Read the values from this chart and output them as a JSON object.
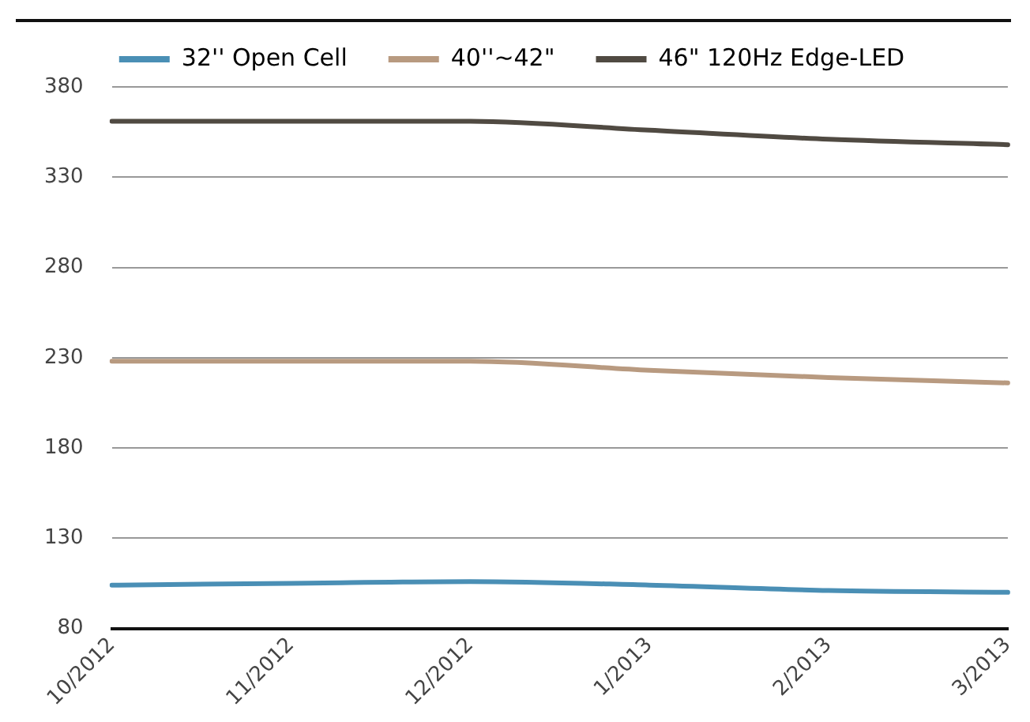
{
  "chart_data": {
    "type": "line",
    "categories": [
      "10/2012",
      "11/2012",
      "12/2012",
      "1/2013",
      "2/2013",
      "3/2013"
    ],
    "series": [
      {
        "name": "32'' Open Cell",
        "color": "#4a8fb5",
        "values": [
          104,
          105,
          106,
          104,
          101,
          100
        ]
      },
      {
        "name": "40''~42\"",
        "color": "#b89a80",
        "values": [
          228,
          228,
          228,
          223,
          219,
          216
        ]
      },
      {
        "name": "46\" 120Hz Edge-LED",
        "color": "#504a42",
        "values": [
          361,
          361,
          361,
          356,
          351,
          348
        ]
      }
    ],
    "ylim": [
      80,
      380
    ],
    "yticks": [
      80,
      130,
      180,
      230,
      280,
      330,
      380
    ],
    "grid": "y",
    "legend": "top",
    "marker": "none",
    "line_style": "solid"
  }
}
